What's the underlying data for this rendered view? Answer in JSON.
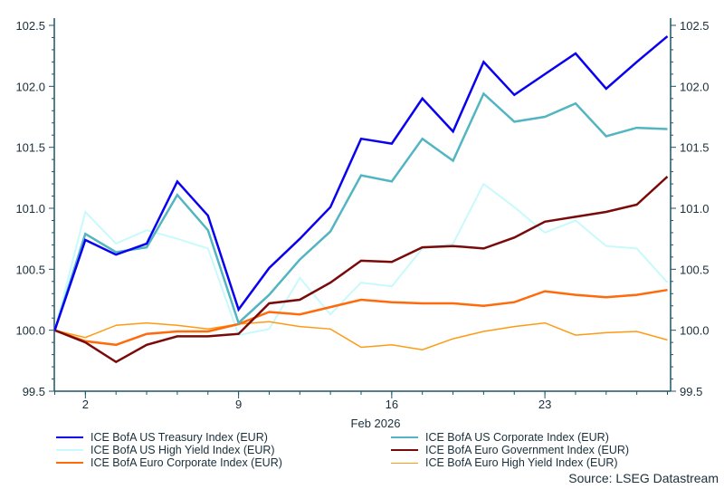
{
  "chart_data": {
    "type": "line",
    "xlabel": "Feb 2026",
    "ylabel": "",
    "ylim": [
      99.5,
      102.5
    ],
    "yticks": [
      "99.5",
      "100.0",
      "100.5",
      "101.0",
      "101.5",
      "102.0",
      "102.5"
    ],
    "y_axis_sides": "both",
    "grid": false,
    "legend_placement": "bottom",
    "x": [
      "Jan 30",
      "Feb 2",
      "Feb 3",
      "Feb 4",
      "Feb 5",
      "Feb 6",
      "Feb 9",
      "Feb 10",
      "Feb 11",
      "Feb 12",
      "Feb 13",
      "Feb 16",
      "Feb 17",
      "Feb 18",
      "Feb 19",
      "Feb 20",
      "Feb 23",
      "Feb 24",
      "Feb 25",
      "Feb 26",
      "Feb 27"
    ],
    "xtick_labels": [
      {
        "at": "Feb 2",
        "label": "2"
      },
      {
        "at": "Feb 9",
        "label": "9"
      },
      {
        "at": "Feb 16",
        "label": "16"
      },
      {
        "at": "Feb 23",
        "label": "23"
      }
    ],
    "series": [
      {
        "name": "ICE BofA US Treasury Index (EUR)",
        "color": "#0a00f0",
        "width": 2.5,
        "values": [
          100.0,
          100.74,
          100.62,
          100.71,
          101.22,
          100.94,
          100.17,
          100.51,
          100.75,
          101.01,
          101.57,
          101.53,
          101.9,
          101.63,
          102.2,
          101.93,
          102.1,
          102.27,
          101.98,
          102.2,
          102.41
        ]
      },
      {
        "name": "ICE BofA US Corporate Index (EUR)",
        "color": "#52b5c2",
        "width": 2.5,
        "values": [
          100.0,
          100.79,
          100.64,
          100.68,
          101.11,
          100.82,
          100.06,
          100.29,
          100.58,
          100.81,
          101.27,
          101.22,
          101.57,
          101.39,
          101.94,
          101.71,
          101.75,
          101.86,
          101.59,
          101.66,
          101.65
        ]
      },
      {
        "name": "ICE BofA US High Yield Index (EUR)",
        "color": "#c8fafc",
        "width": 2,
        "values": [
          100.0,
          100.97,
          100.71,
          100.82,
          100.75,
          100.67,
          99.96,
          100.01,
          100.43,
          100.13,
          100.39,
          100.36,
          100.67,
          100.71,
          101.2,
          101.01,
          100.8,
          100.9,
          100.69,
          100.67,
          100.39
        ]
      },
      {
        "name": "ICE BofA Euro Government Index (EUR)",
        "color": "#7a0a0a",
        "width": 2.5,
        "values": [
          100.0,
          99.9,
          99.74,
          99.88,
          99.95,
          99.95,
          99.97,
          100.22,
          100.25,
          100.39,
          100.57,
          100.56,
          100.68,
          100.69,
          100.67,
          100.76,
          100.89,
          100.93,
          100.97,
          101.03,
          101.26
        ]
      },
      {
        "name": "ICE BofA Euro Corporate Index (EUR)",
        "color": "#ff6a0a",
        "width": 2.5,
        "values": [
          100.0,
          99.91,
          99.88,
          99.97,
          99.99,
          99.99,
          100.05,
          100.15,
          100.13,
          100.19,
          100.25,
          100.23,
          100.22,
          100.22,
          100.2,
          100.23,
          100.32,
          100.29,
          100.27,
          100.29,
          100.33
        ]
      },
      {
        "name": "ICE BofA Euro High Yield Index (EUR)",
        "color": "#ff9a14",
        "width": 1.5,
        "values": [
          100.0,
          99.94,
          100.04,
          100.06,
          100.04,
          100.01,
          100.05,
          100.07,
          100.03,
          100.01,
          99.86,
          99.88,
          99.84,
          99.93,
          99.99,
          100.03,
          100.06,
          99.96,
          99.98,
          99.99,
          99.92
        ]
      }
    ]
  },
  "source": "Source: LSEG Datastream",
  "axis_color": "#1f5566"
}
